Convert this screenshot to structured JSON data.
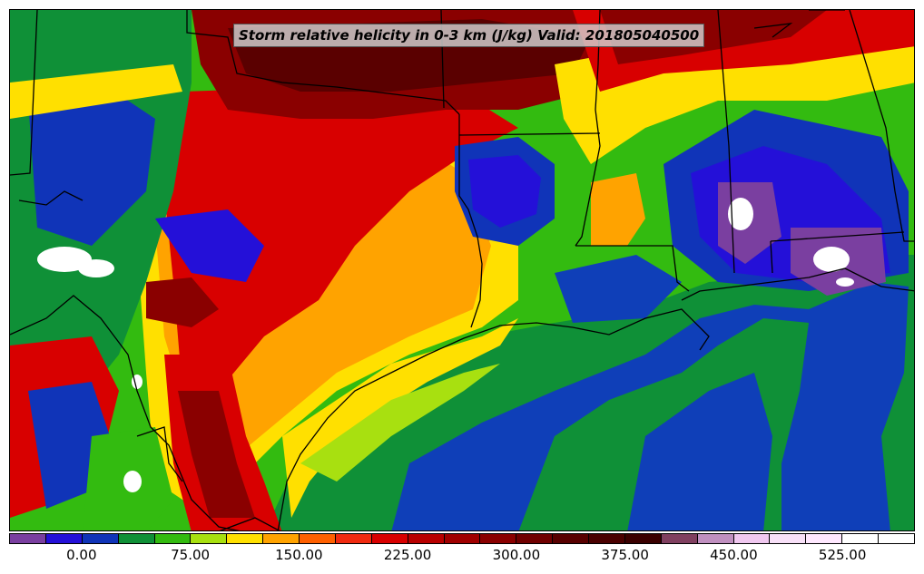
{
  "title": "Storm relative helicity in 0-3 km (J/kg) Valid: 201805040500",
  "colorbar": {
    "colors": [
      "#7a3fa0",
      "#2410d8",
      "#1034b8",
      "#0f9037",
      "#33bb10",
      "#a8e010",
      "#ffe000",
      "#ffa300",
      "#ff6000",
      "#f02a10",
      "#d80000",
      "#b80000",
      "#a00000",
      "#8a0000",
      "#700000",
      "#580000",
      "#4a0000",
      "#3a0000",
      "#804060",
      "#c090c0",
      "#f0c8f0",
      "#f8e0f8",
      "#ffe8ff",
      "#ffffff",
      "#ffffff"
    ],
    "tick_labels": [
      "0.00",
      "75.00",
      "150.00",
      "225.00",
      "300.00",
      "375.00",
      "450.00",
      "525.00"
    ],
    "tick_values": [
      0,
      75,
      150,
      225,
      300,
      375,
      450,
      525
    ],
    "min": -50,
    "max": 575
  },
  "map_layers": {
    "gulf_water_colors": [
      "#0f3fb8",
      "#0f9037"
    ],
    "land_colors": [
      "#33bb10",
      "#ffe000",
      "#ffa300",
      "#d80000",
      "#8a0000",
      "#2410d8",
      "#7a3fa0"
    ]
  }
}
